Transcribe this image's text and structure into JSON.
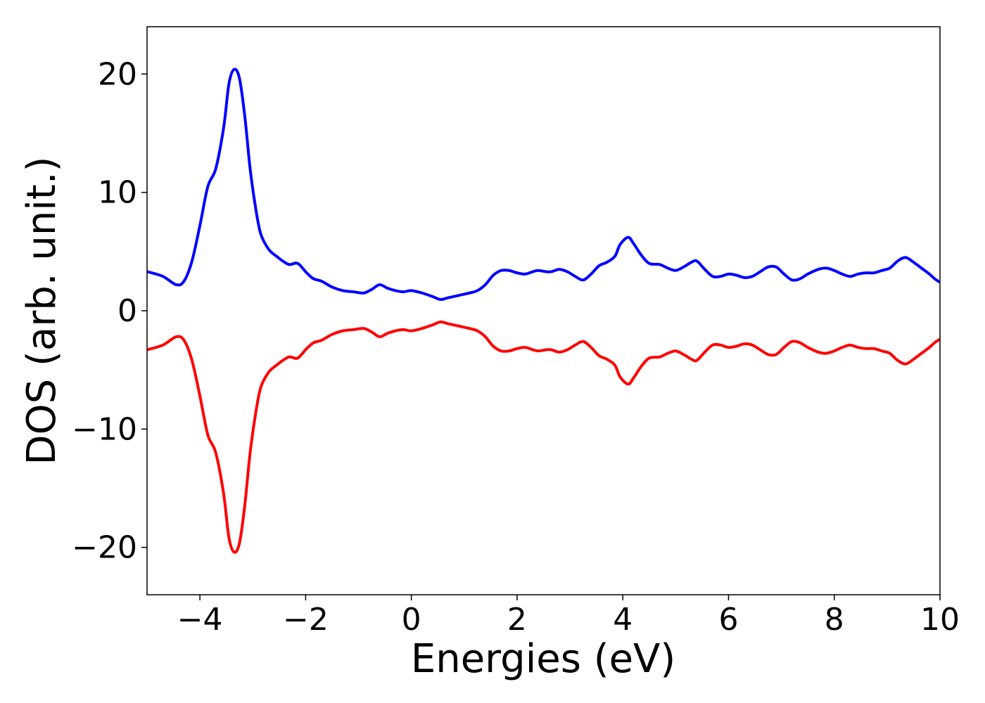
{
  "chart_data": {
    "type": "line",
    "title": "",
    "xlabel": "Energies (eV)",
    "ylabel": "DOS (arb. unit.)",
    "xlim": [
      -5,
      10
    ],
    "ylim": [
      -24,
      24
    ],
    "xticks": [
      -4,
      -2,
      0,
      2,
      4,
      6,
      8,
      10
    ],
    "yticks": [
      -20,
      -10,
      0,
      10,
      20
    ],
    "xtick_labels": [
      "−4",
      "−2",
      "0",
      "2",
      "4",
      "6",
      "8",
      "10"
    ],
    "ytick_labels": [
      "−20",
      "−10",
      "0",
      "10",
      "20"
    ],
    "grid": false,
    "series": [
      {
        "color": "#0000ff",
        "x": [
          -5.0,
          -4.7,
          -4.45,
          -4.3,
          -4.15,
          -4.0,
          -3.85,
          -3.7,
          -3.55,
          -3.45,
          -3.35,
          -3.25,
          -3.15,
          -3.05,
          -2.95,
          -2.85,
          -2.7,
          -2.55,
          -2.4,
          -2.3,
          -2.15,
          -1.98,
          -1.85,
          -1.7,
          -1.5,
          -1.3,
          -1.1,
          -0.9,
          -0.75,
          -0.6,
          -0.45,
          -0.3,
          -0.15,
          0.0,
          0.2,
          0.4,
          0.55,
          0.7,
          0.9,
          1.1,
          1.25,
          1.4,
          1.55,
          1.7,
          1.85,
          2.0,
          2.15,
          2.3,
          2.4,
          2.55,
          2.65,
          2.8,
          2.95,
          3.1,
          3.25,
          3.4,
          3.55,
          3.7,
          3.85,
          3.95,
          4.1,
          4.2,
          4.35,
          4.5,
          4.7,
          4.85,
          5.0,
          5.15,
          5.3,
          5.4,
          5.55,
          5.7,
          5.85,
          6.0,
          6.15,
          6.3,
          6.45,
          6.6,
          6.75,
          6.9,
          7.05,
          7.2,
          7.35,
          7.5,
          7.7,
          7.85,
          8.0,
          8.15,
          8.3,
          8.45,
          8.6,
          8.75,
          8.9,
          9.05,
          9.2,
          9.35,
          9.5,
          9.65,
          9.8,
          9.9,
          10.0
        ],
        "y": [
          3.3,
          2.9,
          2.2,
          2.5,
          4.2,
          7.2,
          10.5,
          12.0,
          15.5,
          19.2,
          20.4,
          19.6,
          16.4,
          12.0,
          8.8,
          6.5,
          5.2,
          4.6,
          4.1,
          3.9,
          4.0,
          3.2,
          2.7,
          2.5,
          2.0,
          1.7,
          1.6,
          1.5,
          1.8,
          2.2,
          1.9,
          1.7,
          1.6,
          1.7,
          1.5,
          1.2,
          0.95,
          1.1,
          1.3,
          1.5,
          1.7,
          2.2,
          3.0,
          3.4,
          3.4,
          3.2,
          3.1,
          3.3,
          3.4,
          3.3,
          3.3,
          3.5,
          3.3,
          2.9,
          2.6,
          3.1,
          3.8,
          4.1,
          4.6,
          5.6,
          6.2,
          5.7,
          4.7,
          4.0,
          3.9,
          3.6,
          3.4,
          3.7,
          4.1,
          4.2,
          3.5,
          2.9,
          2.9,
          3.1,
          3.0,
          2.8,
          2.9,
          3.3,
          3.7,
          3.7,
          3.1,
          2.6,
          2.7,
          3.1,
          3.5,
          3.6,
          3.4,
          3.1,
          2.9,
          3.1,
          3.2,
          3.2,
          3.4,
          3.6,
          4.2,
          4.5,
          4.1,
          3.6,
          3.1,
          2.7,
          2.4
        ]
      },
      {
        "color": "#ff0000",
        "x": [
          -5.0,
          -4.7,
          -4.45,
          -4.3,
          -4.15,
          -4.0,
          -3.85,
          -3.7,
          -3.55,
          -3.45,
          -3.35,
          -3.25,
          -3.15,
          -3.05,
          -2.95,
          -2.85,
          -2.7,
          -2.55,
          -2.4,
          -2.3,
          -2.15,
          -1.98,
          -1.85,
          -1.7,
          -1.5,
          -1.3,
          -1.1,
          -0.9,
          -0.75,
          -0.6,
          -0.45,
          -0.3,
          -0.15,
          0.0,
          0.2,
          0.4,
          0.55,
          0.7,
          0.9,
          1.1,
          1.25,
          1.4,
          1.55,
          1.7,
          1.85,
          2.0,
          2.15,
          2.3,
          2.4,
          2.55,
          2.65,
          2.8,
          2.95,
          3.1,
          3.25,
          3.4,
          3.55,
          3.7,
          3.85,
          3.95,
          4.1,
          4.2,
          4.35,
          4.5,
          4.7,
          4.85,
          5.0,
          5.15,
          5.3,
          5.4,
          5.55,
          5.7,
          5.85,
          6.0,
          6.15,
          6.3,
          6.45,
          6.6,
          6.75,
          6.9,
          7.05,
          7.2,
          7.35,
          7.5,
          7.7,
          7.85,
          8.0,
          8.15,
          8.3,
          8.45,
          8.6,
          8.75,
          8.9,
          9.05,
          9.2,
          9.35,
          9.5,
          9.65,
          9.8,
          9.9,
          10.0
        ],
        "y": [
          -3.3,
          -2.9,
          -2.2,
          -2.5,
          -4.2,
          -7.2,
          -10.5,
          -12.0,
          -15.5,
          -19.2,
          -20.4,
          -19.6,
          -16.4,
          -12.0,
          -8.8,
          -6.5,
          -5.2,
          -4.6,
          -4.1,
          -3.9,
          -4.0,
          -3.2,
          -2.7,
          -2.5,
          -2.0,
          -1.7,
          -1.6,
          -1.5,
          -1.8,
          -2.2,
          -1.9,
          -1.7,
          -1.6,
          -1.7,
          -1.5,
          -1.2,
          -0.95,
          -1.1,
          -1.3,
          -1.5,
          -1.7,
          -2.2,
          -3.0,
          -3.4,
          -3.4,
          -3.2,
          -3.1,
          -3.3,
          -3.4,
          -3.3,
          -3.3,
          -3.5,
          -3.3,
          -2.9,
          -2.6,
          -3.1,
          -3.8,
          -4.1,
          -4.6,
          -5.6,
          -6.2,
          -5.7,
          -4.7,
          -4.0,
          -3.9,
          -3.6,
          -3.4,
          -3.7,
          -4.1,
          -4.2,
          -3.5,
          -2.9,
          -2.9,
          -3.1,
          -3.0,
          -2.8,
          -2.9,
          -3.3,
          -3.7,
          -3.7,
          -3.1,
          -2.6,
          -2.7,
          -3.1,
          -3.5,
          -3.6,
          -3.4,
          -3.1,
          -2.9,
          -3.1,
          -3.2,
          -3.2,
          -3.4,
          -3.6,
          -4.2,
          -4.5,
          -4.1,
          -3.6,
          -3.1,
          -2.7,
          -2.4
        ]
      }
    ]
  }
}
